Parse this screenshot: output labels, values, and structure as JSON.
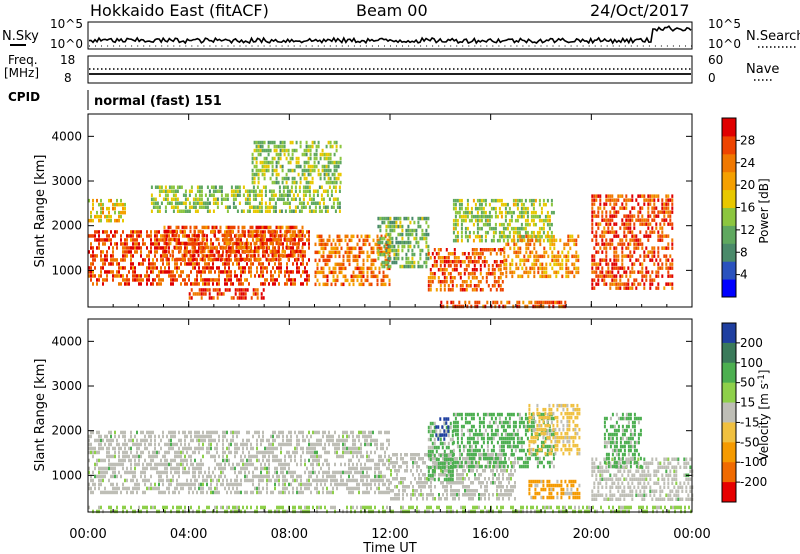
{
  "header": {
    "title": "Hokkaido East (fitACF)",
    "beam": "Beam 00",
    "date": "24/Oct/2017"
  },
  "summary": {
    "nsky_label": "N.Sky",
    "nsearch_label": "N.Search",
    "nsky_ticks": [
      "10^5",
      "10^0"
    ],
    "nsearch_ticks": [
      "10^5",
      "10^0"
    ],
    "freq_label_1": "Freq.",
    "freq_label_2": "[MHz]",
    "freq_ticks": [
      "18",
      "8"
    ],
    "nave_label": "Nave",
    "nave_ticks": [
      "60",
      "0"
    ],
    "cpid_label": "CPID",
    "cpid_value": "normal (fast) 151"
  },
  "chart_data": [
    {
      "type": "heatmap",
      "title": "",
      "xlabel": "Time UT",
      "ylabel": "Slant Range [km]",
      "x_ticks": [
        "00:00",
        "04:00",
        "08:00",
        "12:00",
        "16:00",
        "20:00",
        "00:00"
      ],
      "xlim_hours": [
        0,
        24
      ],
      "y_ticks": [
        1000,
        2000,
        3000,
        4000
      ],
      "ylim": [
        180,
        4500
      ],
      "colorbar": {
        "label": "Power [dB]",
        "ticks": [
          4,
          8,
          12,
          16,
          20,
          24,
          28
        ],
        "range": [
          0,
          32
        ],
        "colors": [
          "#0000ff",
          "#2a52be",
          "#4a8a6a",
          "#5fa85f",
          "#8cc63f",
          "#e8c800",
          "#f5a000",
          "#f07800",
          "#ee4400",
          "#e00000"
        ]
      },
      "regions": [
        {
          "t0": 0.0,
          "t1": 8.8,
          "r0": 700,
          "r1": 1900,
          "value": 27
        },
        {
          "t0": 3.0,
          "t1": 8.5,
          "r0": 1200,
          "r1": 2000,
          "value": 26
        },
        {
          "t0": 0.0,
          "t1": 1.5,
          "r0": 2100,
          "r1": 2600,
          "value": 18
        },
        {
          "t0": 2.5,
          "t1": 10.0,
          "r0": 2300,
          "r1": 2900,
          "value": 14
        },
        {
          "t0": 9.0,
          "t1": 12.0,
          "r0": 700,
          "r1": 1800,
          "value": 24
        },
        {
          "t0": 11.5,
          "t1": 13.5,
          "r0": 1100,
          "r1": 2200,
          "value": 12
        },
        {
          "t0": 13.5,
          "t1": 16.5,
          "r0": 600,
          "r1": 1500,
          "value": 26
        },
        {
          "t0": 14.5,
          "t1": 18.5,
          "r0": 1700,
          "r1": 2600,
          "value": 15
        },
        {
          "t0": 16.5,
          "t1": 19.5,
          "r0": 900,
          "r1": 1800,
          "value": 22
        },
        {
          "t0": 20.0,
          "t1": 23.2,
          "r0": 600,
          "r1": 2700,
          "value": 27
        },
        {
          "t0": 4.0,
          "t1": 7.0,
          "r0": 350,
          "r1": 600,
          "value": 28
        },
        {
          "t0": 14.0,
          "t1": 19.0,
          "r0": 180,
          "r1": 320,
          "value": 26
        },
        {
          "t0": 6.5,
          "t1": 10.0,
          "r0": 3000,
          "r1": 3900,
          "value": 14
        }
      ]
    },
    {
      "type": "heatmap",
      "title": "",
      "xlabel": "Time UT",
      "ylabel": "Slant Range [km]",
      "x_ticks": [
        "00:00",
        "04:00",
        "08:00",
        "12:00",
        "16:00",
        "20:00",
        "00:00"
      ],
      "xlim_hours": [
        0,
        24
      ],
      "y_ticks": [
        1000,
        2000,
        3000,
        4000
      ],
      "ylim": [
        180,
        4500
      ],
      "colorbar": {
        "label": "Velocity [m s^-1]",
        "ticks": [
          "200",
          "100",
          "50",
          "15",
          "-15",
          "-50",
          "-100",
          "-200"
        ],
        "colors": [
          "#1f3fa0",
          "#3a7a5a",
          "#4caf50",
          "#8ed04a",
          "#bebeb6",
          "#f0c040",
          "#f59a00",
          "#f06a00",
          "#e60000"
        ]
      },
      "regions": [
        {
          "t0": 0.0,
          "t1": 12.0,
          "r0": 600,
          "r1": 2000,
          "value": "ground"
        },
        {
          "t0": 12.0,
          "t1": 17.0,
          "r0": 500,
          "r1": 1500,
          "value": "ground"
        },
        {
          "t0": 20.0,
          "t1": 24.0,
          "r0": 500,
          "r1": 1400,
          "value": "ground"
        },
        {
          "t0": 13.5,
          "t1": 14.5,
          "r0": 900,
          "r1": 2200,
          "value": 50
        },
        {
          "t0": 14.5,
          "t1": 18.5,
          "r0": 1200,
          "r1": 2400,
          "value": 50
        },
        {
          "t0": 17.5,
          "t1": 19.5,
          "r0": 1500,
          "r1": 2600,
          "value": -50
        },
        {
          "t0": 20.5,
          "t1": 22.0,
          "r0": 1200,
          "r1": 2400,
          "value": 50
        },
        {
          "t0": 17.5,
          "t1": 19.5,
          "r0": 500,
          "r1": 900,
          "value": -100
        },
        {
          "t0": 13.8,
          "t1": 14.3,
          "r0": 1800,
          "r1": 2300,
          "value": 200
        },
        {
          "t0": 0.0,
          "t1": 24.0,
          "r0": 180,
          "r1": 320,
          "value": 15
        }
      ]
    }
  ]
}
